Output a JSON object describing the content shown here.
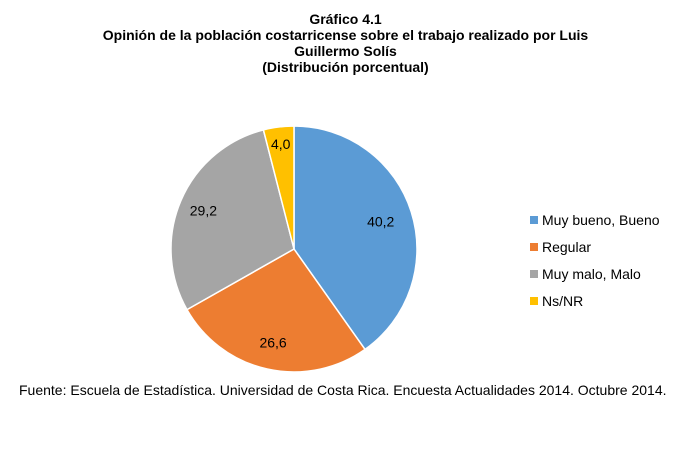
{
  "chart_data": {
    "type": "pie",
    "title": "Gráfico 4.1",
    "subtitle_lines": [
      "Opinión de la población costarricense sobre el trabajo realizado por Luis",
      "Guillermo Solís",
      "(Distribución porcentual)"
    ],
    "categories": [
      "Muy bueno, Bueno",
      "Regular",
      "Muy malo, Malo",
      "Ns/NR"
    ],
    "values": [
      40.2,
      26.6,
      29.2,
      4.0
    ],
    "data_labels": [
      "40,2",
      "26,6",
      "29,2",
      "4,0"
    ],
    "colors": [
      "#5b9bd5",
      "#ed7d31",
      "#a5a5a5",
      "#ffc000"
    ],
    "start_angle_deg": 0,
    "direction": "clockwise",
    "legend_placement": "right"
  },
  "source": "Fuente: Escuela de Estadística. Universidad de Costa Rica. Encuesta Actualidades 2014. Octubre 2014."
}
